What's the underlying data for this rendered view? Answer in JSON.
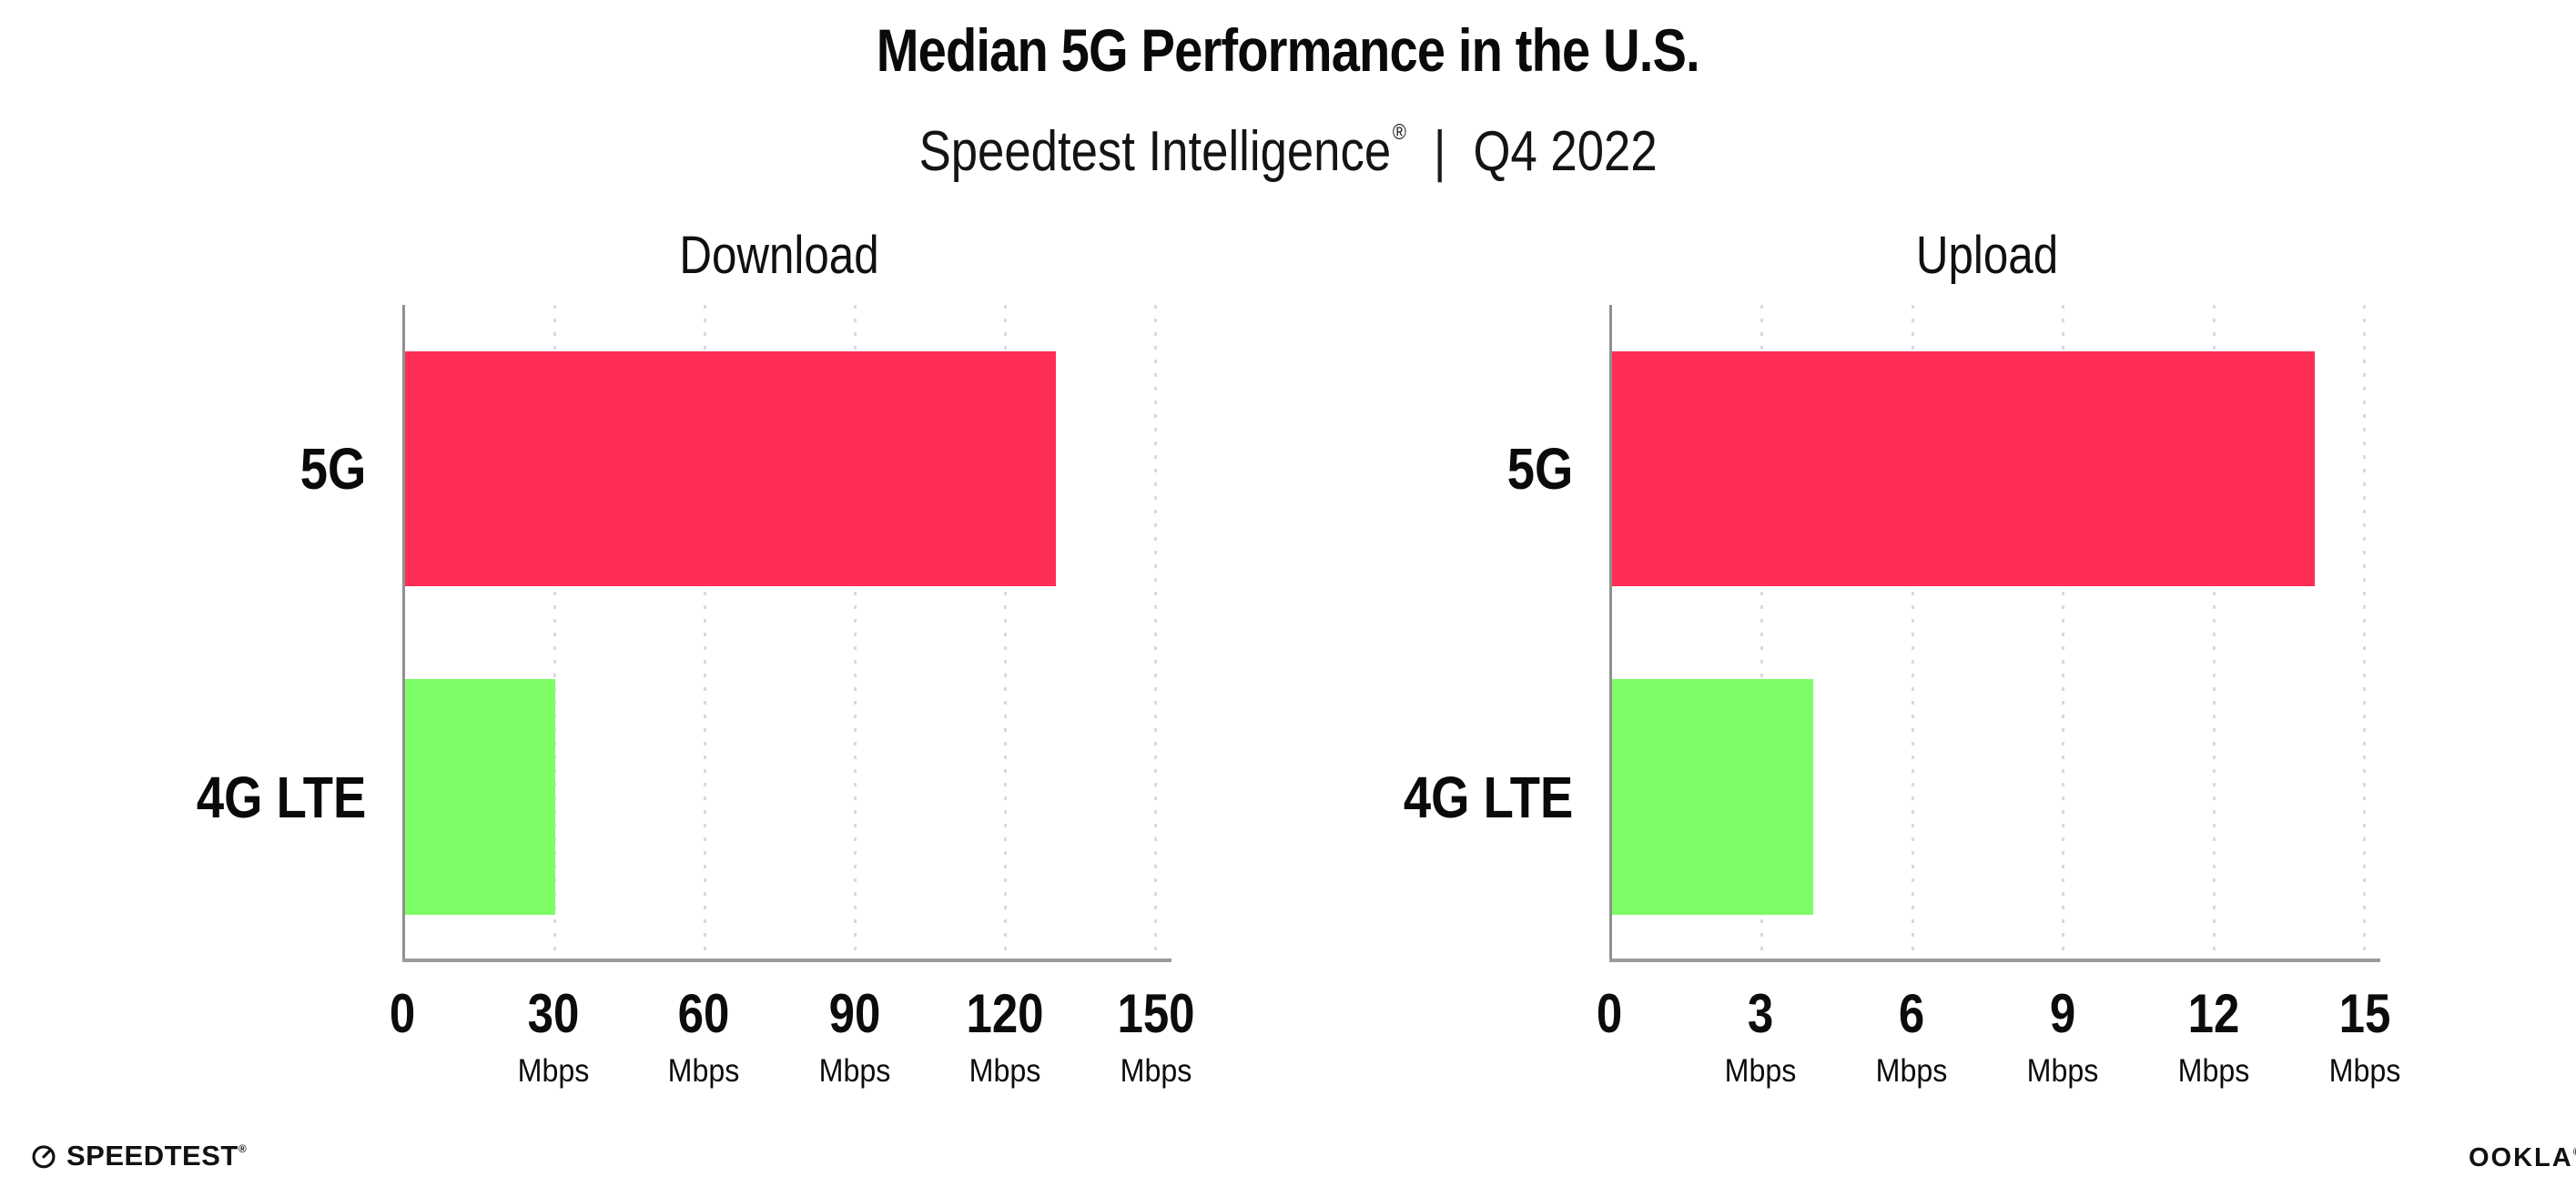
{
  "header": {
    "title": "Median 5G Performance in the U.S.",
    "subtitle_brand": "Speedtest Intelligence",
    "subtitle_reg": "®",
    "subtitle_sep": "|",
    "subtitle_period": "Q4 2022"
  },
  "chart_data": [
    {
      "type": "bar",
      "orientation": "horizontal",
      "title": "Download",
      "categories": [
        "5G",
        "4G LTE"
      ],
      "values": [
        130,
        30
      ],
      "unit": "Mbps",
      "xlim": [
        0,
        150
      ],
      "xticks": [
        0,
        30,
        60,
        90,
        120,
        150
      ],
      "bar_colors": [
        "#FF2E56",
        "#7DFD66"
      ],
      "grid": "dotted-vertical-on",
      "legend": "none"
    },
    {
      "type": "bar",
      "orientation": "horizontal",
      "title": "Upload",
      "categories": [
        "5G",
        "4G LTE"
      ],
      "values": [
        14,
        4
      ],
      "unit": "Mbps",
      "xlim": [
        0,
        15
      ],
      "xticks": [
        0,
        3,
        6,
        9,
        12,
        15
      ],
      "bar_colors": [
        "#FF2E56",
        "#7DFD66"
      ],
      "grid": "dotted-vertical-on",
      "legend": "none"
    }
  ],
  "footer": {
    "speedtest_label": "SPEEDTEST",
    "speedtest_reg": "®",
    "ookla_label": "OOKLA",
    "ookla_reg": "®"
  },
  "colors": {
    "bar_5g": "#FF2E56",
    "bar_4g_lte": "#7DFD66",
    "axis": "#9b9b9b",
    "gridline": "#d9d9e5",
    "text": "#0c0c0c",
    "background": "#ffffff"
  }
}
